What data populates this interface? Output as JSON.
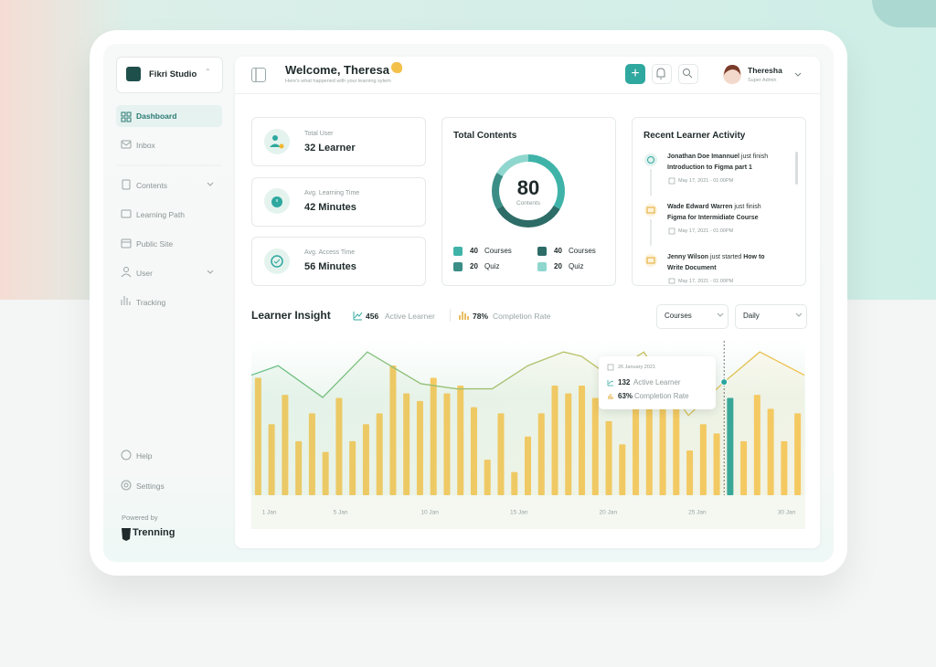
{
  "sidebar": {
    "workspace": "Fikri Studio",
    "nav": [
      "Dashboard",
      "Inbox",
      "Contents",
      "Learning Path",
      "Public Site",
      "User",
      "Tracking"
    ],
    "footer_nav": [
      "Help",
      "Settings"
    ],
    "powered_by": "Powered by",
    "brand": "Trenning"
  },
  "header": {
    "title": "Welcome, Theresa",
    "subtitle": "Here's what happened with your learning sytem",
    "user_name": "Theresha",
    "user_role": "Super Admin"
  },
  "stats": [
    {
      "label": "Total User",
      "value": "32 Learner"
    },
    {
      "label": "Avg. Learning Time",
      "value": "42 Minutes"
    },
    {
      "label": "Avg. Access Time",
      "value": "56 Minutes"
    }
  ],
  "total_contents": {
    "title": "Total Contents",
    "center_value": "80",
    "center_label": "Contents",
    "segments": [
      {
        "value": 40,
        "label": "Courses",
        "color": "#3fb3a8"
      },
      {
        "value": 40,
        "label": "Courses",
        "color": "#2d6c67"
      },
      {
        "value": 20,
        "label": "Quiz",
        "color": "#3a8e86"
      },
      {
        "value": 20,
        "label": "Quiz",
        "color": "#8fd7ce"
      }
    ]
  },
  "activity": {
    "title": "Recent Learner Activity",
    "items": [
      {
        "name": "Jonathan Doe Imannuel",
        "action": "just finish",
        "course": "Introduction to Figma part 1",
        "time": "May 17, 2021 - 01:00PM"
      },
      {
        "name": "Wade Edward Warren",
        "action": "just finish",
        "course": "Figma for Intermidiate Course",
        "time": "May 17, 2021 - 01:00PM"
      },
      {
        "name": "Jenny Wilson",
        "action": "just started",
        "course": "How to Write Document",
        "time": "May 17, 2021 - 01:00PM"
      }
    ]
  },
  "insight": {
    "title": "Learner Insight",
    "summary": [
      "456",
      "78%"
    ],
    "filters": [
      "Courses",
      "Daily"
    ],
    "tooltip": {
      "date": "26 January 2021",
      "completion_label": "63%"
    }
  },
  "chart_data": {
    "type": "bar",
    "xlim": [
      0,
      31
    ],
    "xticks": [
      {
        "value": 1,
        "label": "1 Jan"
      },
      {
        "value": 5,
        "label": "5 Jan"
      },
      {
        "value": 10,
        "label": "10 Jan"
      },
      {
        "value": 15,
        "label": "15 Jan"
      },
      {
        "value": 20,
        "label": "20 Jan"
      },
      {
        "value": 25,
        "label": "25 Jan"
      },
      {
        "value": 30,
        "label": "30 Jan"
      }
    ],
    "ylim": [
      0,
      100
    ],
    "y2lim": [
      0,
      180
    ],
    "series": [
      {
        "name": "Completion Rate",
        "type": "bar",
        "color": "#f5c453",
        "highlight_color": "#2aa59e",
        "highlight_index": 35,
        "values": [
          76,
          46,
          65,
          35,
          53,
          28,
          63,
          35,
          46,
          53,
          84,
          66,
          61,
          76,
          66,
          71,
          57,
          23,
          53,
          15,
          38,
          53,
          71,
          66,
          71,
          63,
          48,
          33,
          71,
          75,
          58,
          56,
          29,
          46,
          40,
          63,
          35,
          65,
          56,
          35,
          53
        ]
      },
      {
        "name": "Active Learner",
        "type": "line",
        "axis": "y2",
        "color": "#67c089",
        "color_end": "#f2c14e",
        "highlight_index": 13,
        "x": [
          0,
          1.5,
          4,
          6.5,
          9.5,
          11.5,
          13.5,
          15.5,
          17.5,
          18.5,
          20,
          22,
          24.5,
          26.5,
          28.5,
          31
        ],
        "values": [
          140,
          151,
          114,
          167,
          130,
          124,
          124,
          151,
          167,
          162,
          140,
          167,
          93,
          132,
          167,
          140
        ]
      }
    ]
  }
}
